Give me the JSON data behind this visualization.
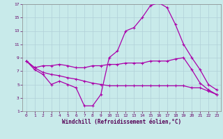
{
  "bg_color": "#c8eaea",
  "grid_color": "#b0d0d8",
  "line_color": "#aa00aa",
  "xlabel": "Windchill (Refroidissement éolien,°C)",
  "xlim": [
    -0.5,
    23.5
  ],
  "ylim": [
    1,
    17
  ],
  "yticks": [
    1,
    3,
    5,
    7,
    9,
    11,
    13,
    15,
    17
  ],
  "xticks": [
    0,
    1,
    2,
    3,
    4,
    5,
    6,
    7,
    8,
    9,
    10,
    11,
    12,
    13,
    14,
    15,
    16,
    17,
    18,
    19,
    20,
    21,
    22,
    23
  ],
  "line1_x": [
    0,
    1,
    2,
    3,
    4,
    5,
    6,
    7,
    8,
    9,
    10,
    11,
    12,
    13,
    14,
    15,
    16,
    17,
    18,
    19,
    20,
    21,
    22,
    23
  ],
  "line1_y": [
    8.5,
    7.2,
    6.5,
    5.0,
    5.5,
    5.0,
    4.5,
    1.8,
    1.8,
    3.5,
    9.0,
    10.0,
    13.0,
    13.5,
    15.0,
    16.8,
    17.2,
    16.5,
    14.0,
    11.0,
    9.0,
    7.2,
    5.0,
    4.2
  ],
  "line2_x": [
    0,
    1,
    2,
    3,
    4,
    5,
    6,
    7,
    8,
    9,
    10,
    11,
    12,
    13,
    14,
    15,
    16,
    17,
    18,
    19,
    20,
    21,
    22,
    23
  ],
  "line2_y": [
    8.5,
    7.5,
    7.8,
    7.8,
    8.0,
    7.8,
    7.5,
    7.5,
    7.8,
    7.8,
    8.0,
    8.0,
    8.2,
    8.2,
    8.2,
    8.5,
    8.5,
    8.5,
    8.8,
    9.0,
    7.2,
    5.2,
    4.2,
    3.5
  ],
  "line3_x": [
    0,
    1,
    2,
    3,
    4,
    5,
    6,
    7,
    8,
    9,
    10,
    11,
    12,
    13,
    14,
    15,
    16,
    17,
    18,
    19,
    20,
    21,
    22,
    23
  ],
  "line3_y": [
    8.5,
    7.5,
    6.8,
    6.5,
    6.3,
    6.0,
    5.8,
    5.5,
    5.2,
    5.0,
    4.8,
    4.8,
    4.8,
    4.8,
    4.8,
    4.8,
    4.8,
    4.8,
    4.8,
    4.8,
    4.5,
    4.5,
    4.0,
    3.5
  ],
  "marker": "+",
  "markersize": 3,
  "linewidth": 0.9,
  "tick_fontsize": 4.5,
  "xlabel_fontsize": 5.5
}
